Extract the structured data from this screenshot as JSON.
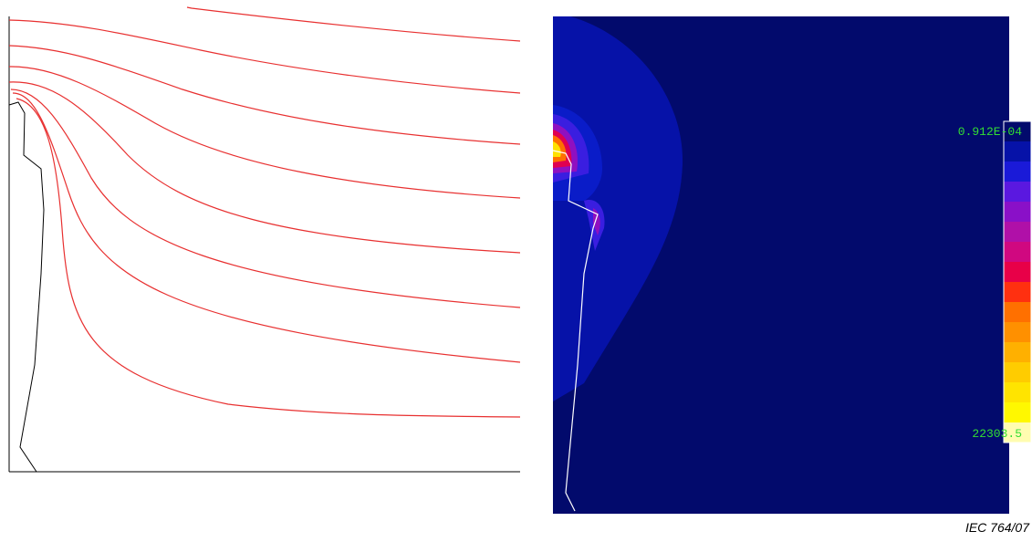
{
  "colorbar": {
    "top_label": "0.912E-04",
    "bottom_label": "22303.5"
  },
  "caption": "IEC  764/07"
}
